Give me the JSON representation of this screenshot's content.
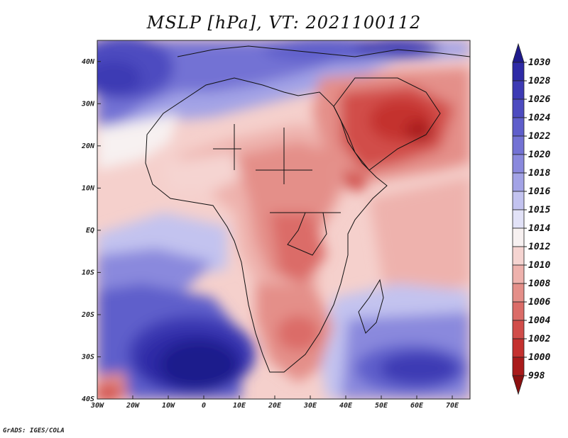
{
  "title": "MSLP [hPa], VT: 2021100112",
  "credit": "GrADS: IGES/COLA",
  "map": {
    "lon_range": [
      -30,
      75
    ],
    "lat_range": [
      -40,
      45
    ],
    "lon_ticks": [
      {
        "lon": -30,
        "label": "30W"
      },
      {
        "lon": -20,
        "label": "20W"
      },
      {
        "lon": -10,
        "label": "10W"
      },
      {
        "lon": 0,
        "label": "0"
      },
      {
        "lon": 10,
        "label": "10E"
      },
      {
        "lon": 20,
        "label": "20E"
      },
      {
        "lon": 30,
        "label": "30E"
      },
      {
        "lon": 40,
        "label": "40E"
      },
      {
        "lon": 50,
        "label": "50E"
      },
      {
        "lon": 60,
        "label": "60E"
      },
      {
        "lon": 70,
        "label": "70E"
      }
    ],
    "lat_ticks": [
      {
        "lat": 40,
        "label": "40N"
      },
      {
        "lat": 30,
        "label": "30N"
      },
      {
        "lat": 20,
        "label": "20N"
      },
      {
        "lat": 10,
        "label": "10N"
      },
      {
        "lat": 0,
        "label": "EQ"
      },
      {
        "lat": -10,
        "label": "10S"
      },
      {
        "lat": -20,
        "label": "20S"
      },
      {
        "lat": -30,
        "label": "30S"
      },
      {
        "lat": -40,
        "label": "40S"
      }
    ]
  },
  "colorbar": {
    "levels": [
      "1030",
      "1028",
      "1026",
      "1024",
      "1022",
      "1020",
      "1018",
      "1016",
      "1015",
      "1014",
      "1012",
      "1010",
      "1008",
      "1006",
      "1004",
      "1002",
      "1000",
      "998"
    ],
    "colors": [
      "#1f1a8c",
      "#2e2aa6",
      "#3d3ab4",
      "#4d4bc0",
      "#5f5ecb",
      "#7372d4",
      "#8a89dd",
      "#a3a3e6",
      "#c3c3ef",
      "#e2e2f7",
      "#f7f1f1",
      "#f5d4d1",
      "#eeb2ad",
      "#e48f89",
      "#db6c68",
      "#d14d4a",
      "#c4312f",
      "#a91a1a",
      "#8c1010"
    ]
  }
}
